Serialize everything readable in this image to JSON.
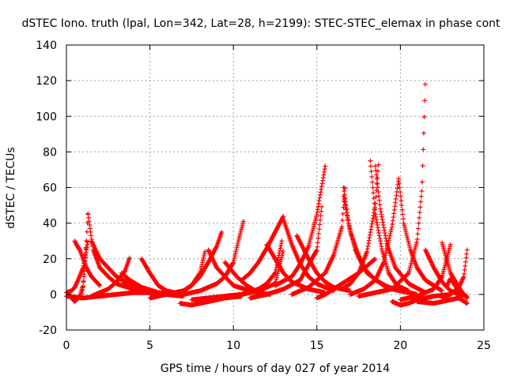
{
  "chart_data": {
    "type": "scatter",
    "title": "dSTEC Iono. truth (lpal, Lon=342, Lat=28, h=2199): STEC-STEC_elemax in phase cont",
    "xlabel": "GPS time / hours of day 027 of year 2014",
    "ylabel": "dSTEC  / TECUs",
    "xlim": [
      0,
      25
    ],
    "ylim": [
      -20,
      140
    ],
    "xticks": [
      0,
      5,
      10,
      15,
      20,
      25
    ],
    "yticks": [
      -20,
      0,
      20,
      40,
      60,
      80,
      100,
      120,
      140
    ],
    "grid": true,
    "marker": "plus",
    "color": "#ff0000",
    "arcs": [
      {
        "t": [
          0.0,
          0.3,
          0.5,
          0.7,
          1.0,
          1.3
        ],
        "v": [
          1,
          2,
          4,
          8,
          15,
          30
        ]
      },
      {
        "t": [
          0.3,
          0.5,
          0.8,
          1.0,
          1.2
        ],
        "v": [
          -2,
          -4,
          -1,
          5,
          30
        ]
      },
      {
        "t": [
          0.9,
          1.0,
          1.1,
          1.2,
          1.3
        ],
        "v": [
          -2,
          5,
          15,
          30,
          47
        ]
      },
      {
        "t": [
          1.3,
          1.6,
          2.0,
          2.5,
          3.0,
          4.0,
          5.0,
          5.8
        ],
        "v": [
          45,
          25,
          15,
          10,
          6,
          3,
          1,
          0
        ]
      },
      {
        "t": [
          1.5,
          2.0,
          2.5,
          3.0,
          3.5,
          4.0,
          5.0
        ],
        "v": [
          30,
          20,
          15,
          10,
          7,
          5,
          2
        ]
      },
      {
        "t": [
          0.5,
          0.6,
          0.8,
          1.0,
          1.2,
          1.5,
          2.0
        ],
        "v": [
          30,
          28,
          25,
          20,
          15,
          10,
          5
        ]
      },
      {
        "t": [
          1.5,
          2.0,
          2.5,
          3.0,
          3.5,
          3.8
        ],
        "v": [
          -1,
          1,
          3,
          7,
          13,
          21
        ]
      },
      {
        "t": [
          2.5,
          3.0,
          4.0,
          5.0,
          6.0,
          7.0
        ],
        "v": [
          15,
          10,
          5,
          2,
          0,
          -1
        ]
      },
      {
        "t": [
          3.3,
          3.8,
          4.5,
          5.5,
          6.5
        ],
        "v": [
          12,
          8,
          4,
          1,
          0
        ]
      },
      {
        "t": [
          4.5,
          5.0,
          5.5,
          6.0,
          7.0
        ],
        "v": [
          20,
          12,
          5,
          2,
          0
        ]
      },
      {
        "t": [
          0.0,
          1.0,
          2.0,
          3.0,
          4.0,
          5.0,
          6.0,
          7.0
        ],
        "v": [
          -1,
          -2,
          -1,
          0,
          1,
          1,
          0,
          -1
        ]
      },
      {
        "t": [
          5.0,
          6.0,
          7.0,
          7.5,
          8.0,
          8.3
        ],
        "v": [
          -2,
          0,
          2,
          5,
          12,
          24
        ]
      },
      {
        "t": [
          6.0,
          7.0,
          7.5,
          8.0,
          8.5,
          9.0,
          9.3
        ],
        "v": [
          0,
          2,
          5,
          10,
          18,
          27,
          35
        ]
      },
      {
        "t": [
          7.0,
          8.0,
          9.0,
          9.5,
          10.0,
          10.3,
          10.6
        ],
        "v": [
          0,
          2,
          6,
          10,
          18,
          30,
          41
        ]
      },
      {
        "t": [
          6.8,
          7.5,
          8.5,
          9.5,
          10.5
        ],
        "v": [
          -5,
          -6,
          -4,
          -2,
          -1
        ]
      },
      {
        "t": [
          7.5,
          8.5,
          9.5,
          10.5,
          11.5,
          12.0,
          12.5,
          12.9
        ],
        "v": [
          -3,
          -2,
          -1,
          0,
          3,
          6,
          12,
          30
        ]
      },
      {
        "t": [
          9.5,
          10.2,
          10.8,
          11.5,
          12.2
        ],
        "v": [
          18,
          10,
          5,
          1,
          0
        ]
      },
      {
        "t": [
          8.5,
          9.0,
          9.5,
          10.0,
          11.0,
          12.0
        ],
        "v": [
          25,
          15,
          10,
          5,
          2,
          0
        ]
      },
      {
        "t": [
          10.5,
          11.0,
          11.5,
          12.0,
          12.5,
          13.0
        ],
        "v": [
          8,
          12,
          18,
          26,
          35,
          44
        ]
      },
      {
        "t": [
          9.5,
          10.5,
          11.5,
          12.5,
          13.0
        ],
        "v": [
          -1,
          0,
          2,
          6,
          25
        ]
      },
      {
        "t": [
          12.0,
          12.5,
          13.0,
          13.5,
          14.5,
          15.5
        ],
        "v": [
          28,
          20,
          12,
          7,
          3,
          1
        ]
      },
      {
        "t": [
          13.0,
          13.5,
          14.0,
          14.5,
          15.0,
          16.0
        ],
        "v": [
          42,
          28,
          17,
          10,
          6,
          2
        ]
      },
      {
        "t": [
          13.8,
          14.5,
          15.0,
          15.5,
          16.0,
          17.0
        ],
        "v": [
          33,
          20,
          12,
          7,
          4,
          2
        ]
      },
      {
        "t": [
          12.5,
          13.5,
          14.0,
          14.5,
          15.0,
          15.5
        ],
        "v": [
          5,
          10,
          17,
          27,
          45,
          72
        ]
      },
      {
        "t": [
          11.0,
          12.0,
          13.0,
          14.0,
          15.0,
          15.3
        ],
        "v": [
          -2,
          0,
          3,
          8,
          25,
          50
        ]
      },
      {
        "t": [
          13.5,
          14.5,
          15.5,
          16.0,
          16.5,
          16.7
        ],
        "v": [
          0,
          4,
          12,
          22,
          38,
          62
        ]
      },
      {
        "t": [
          16.6,
          16.9,
          17.3,
          17.8,
          18.5,
          19.5,
          20.5
        ],
        "v": [
          60,
          40,
          25,
          15,
          8,
          3,
          1
        ]
      },
      {
        "t": [
          16.6,
          17.0,
          17.5,
          18.0,
          19.0,
          20.0,
          21.0
        ],
        "v": [
          55,
          35,
          22,
          12,
          5,
          2,
          0
        ]
      },
      {
        "t": [
          15.0,
          15.5,
          16.0,
          16.5,
          17.5,
          18.5
        ],
        "v": [
          -2,
          0,
          3,
          6,
          12,
          20
        ]
      },
      {
        "t": [
          16.5,
          17.0,
          17.5,
          18.0,
          18.5,
          18.7
        ],
        "v": [
          3,
          6,
          12,
          24,
          50,
          74
        ]
      },
      {
        "t": [
          18.5,
          18.8,
          19.2,
          19.7,
          20.5,
          21.5
        ],
        "v": [
          72,
          48,
          28,
          15,
          6,
          1
        ]
      },
      {
        "t": [
          18.2,
          18.5,
          18.9,
          19.3,
          19.8,
          20.5
        ],
        "v": [
          75,
          45,
          25,
          12,
          5,
          2
        ]
      },
      {
        "t": [
          17.0,
          17.8,
          18.5,
          19.0,
          19.5,
          19.9
        ],
        "v": [
          0,
          3,
          8,
          18,
          38,
          65
        ]
      },
      {
        "t": [
          19.9,
          20.2,
          20.6,
          21.0,
          21.5,
          22.5
        ],
        "v": [
          65,
          40,
          25,
          15,
          8,
          2
        ]
      },
      {
        "t": [
          17.5,
          18.5,
          19.5,
          20.5,
          21.0,
          21.3,
          21.5
        ],
        "v": [
          -1,
          1,
          3,
          12,
          30,
          60,
          121
        ]
      },
      {
        "t": [
          19.5,
          20.0,
          20.5,
          21.0,
          22.0,
          23.0
        ],
        "v": [
          -4,
          -6,
          -5,
          -3,
          -1,
          0
        ]
      },
      {
        "t": [
          20.0,
          21.0,
          22.0,
          22.5,
          23.0
        ],
        "v": [
          -3,
          -1,
          3,
          10,
          28
        ]
      },
      {
        "t": [
          21.5,
          22.0,
          22.5,
          23.0,
          23.5,
          24.0
        ],
        "v": [
          25,
          15,
          7,
          2,
          0,
          -1
        ]
      },
      {
        "t": [
          22.5,
          23.0,
          23.5,
          23.8
        ],
        "v": [
          29,
          12,
          4,
          0
        ]
      },
      {
        "t": [
          22.8,
          23.0,
          23.2,
          23.5,
          24.0
        ],
        "v": [
          5,
          9,
          6,
          2,
          -2
        ]
      },
      {
        "t": [
          21.0,
          22.0,
          23.0,
          23.5,
          24.0
        ],
        "v": [
          -4,
          -5,
          -3,
          -2,
          -5
        ]
      },
      {
        "t": [
          22.5,
          23.0,
          23.5,
          23.8,
          24.0
        ],
        "v": [
          -2,
          0,
          4,
          10,
          25
        ]
      }
    ]
  }
}
